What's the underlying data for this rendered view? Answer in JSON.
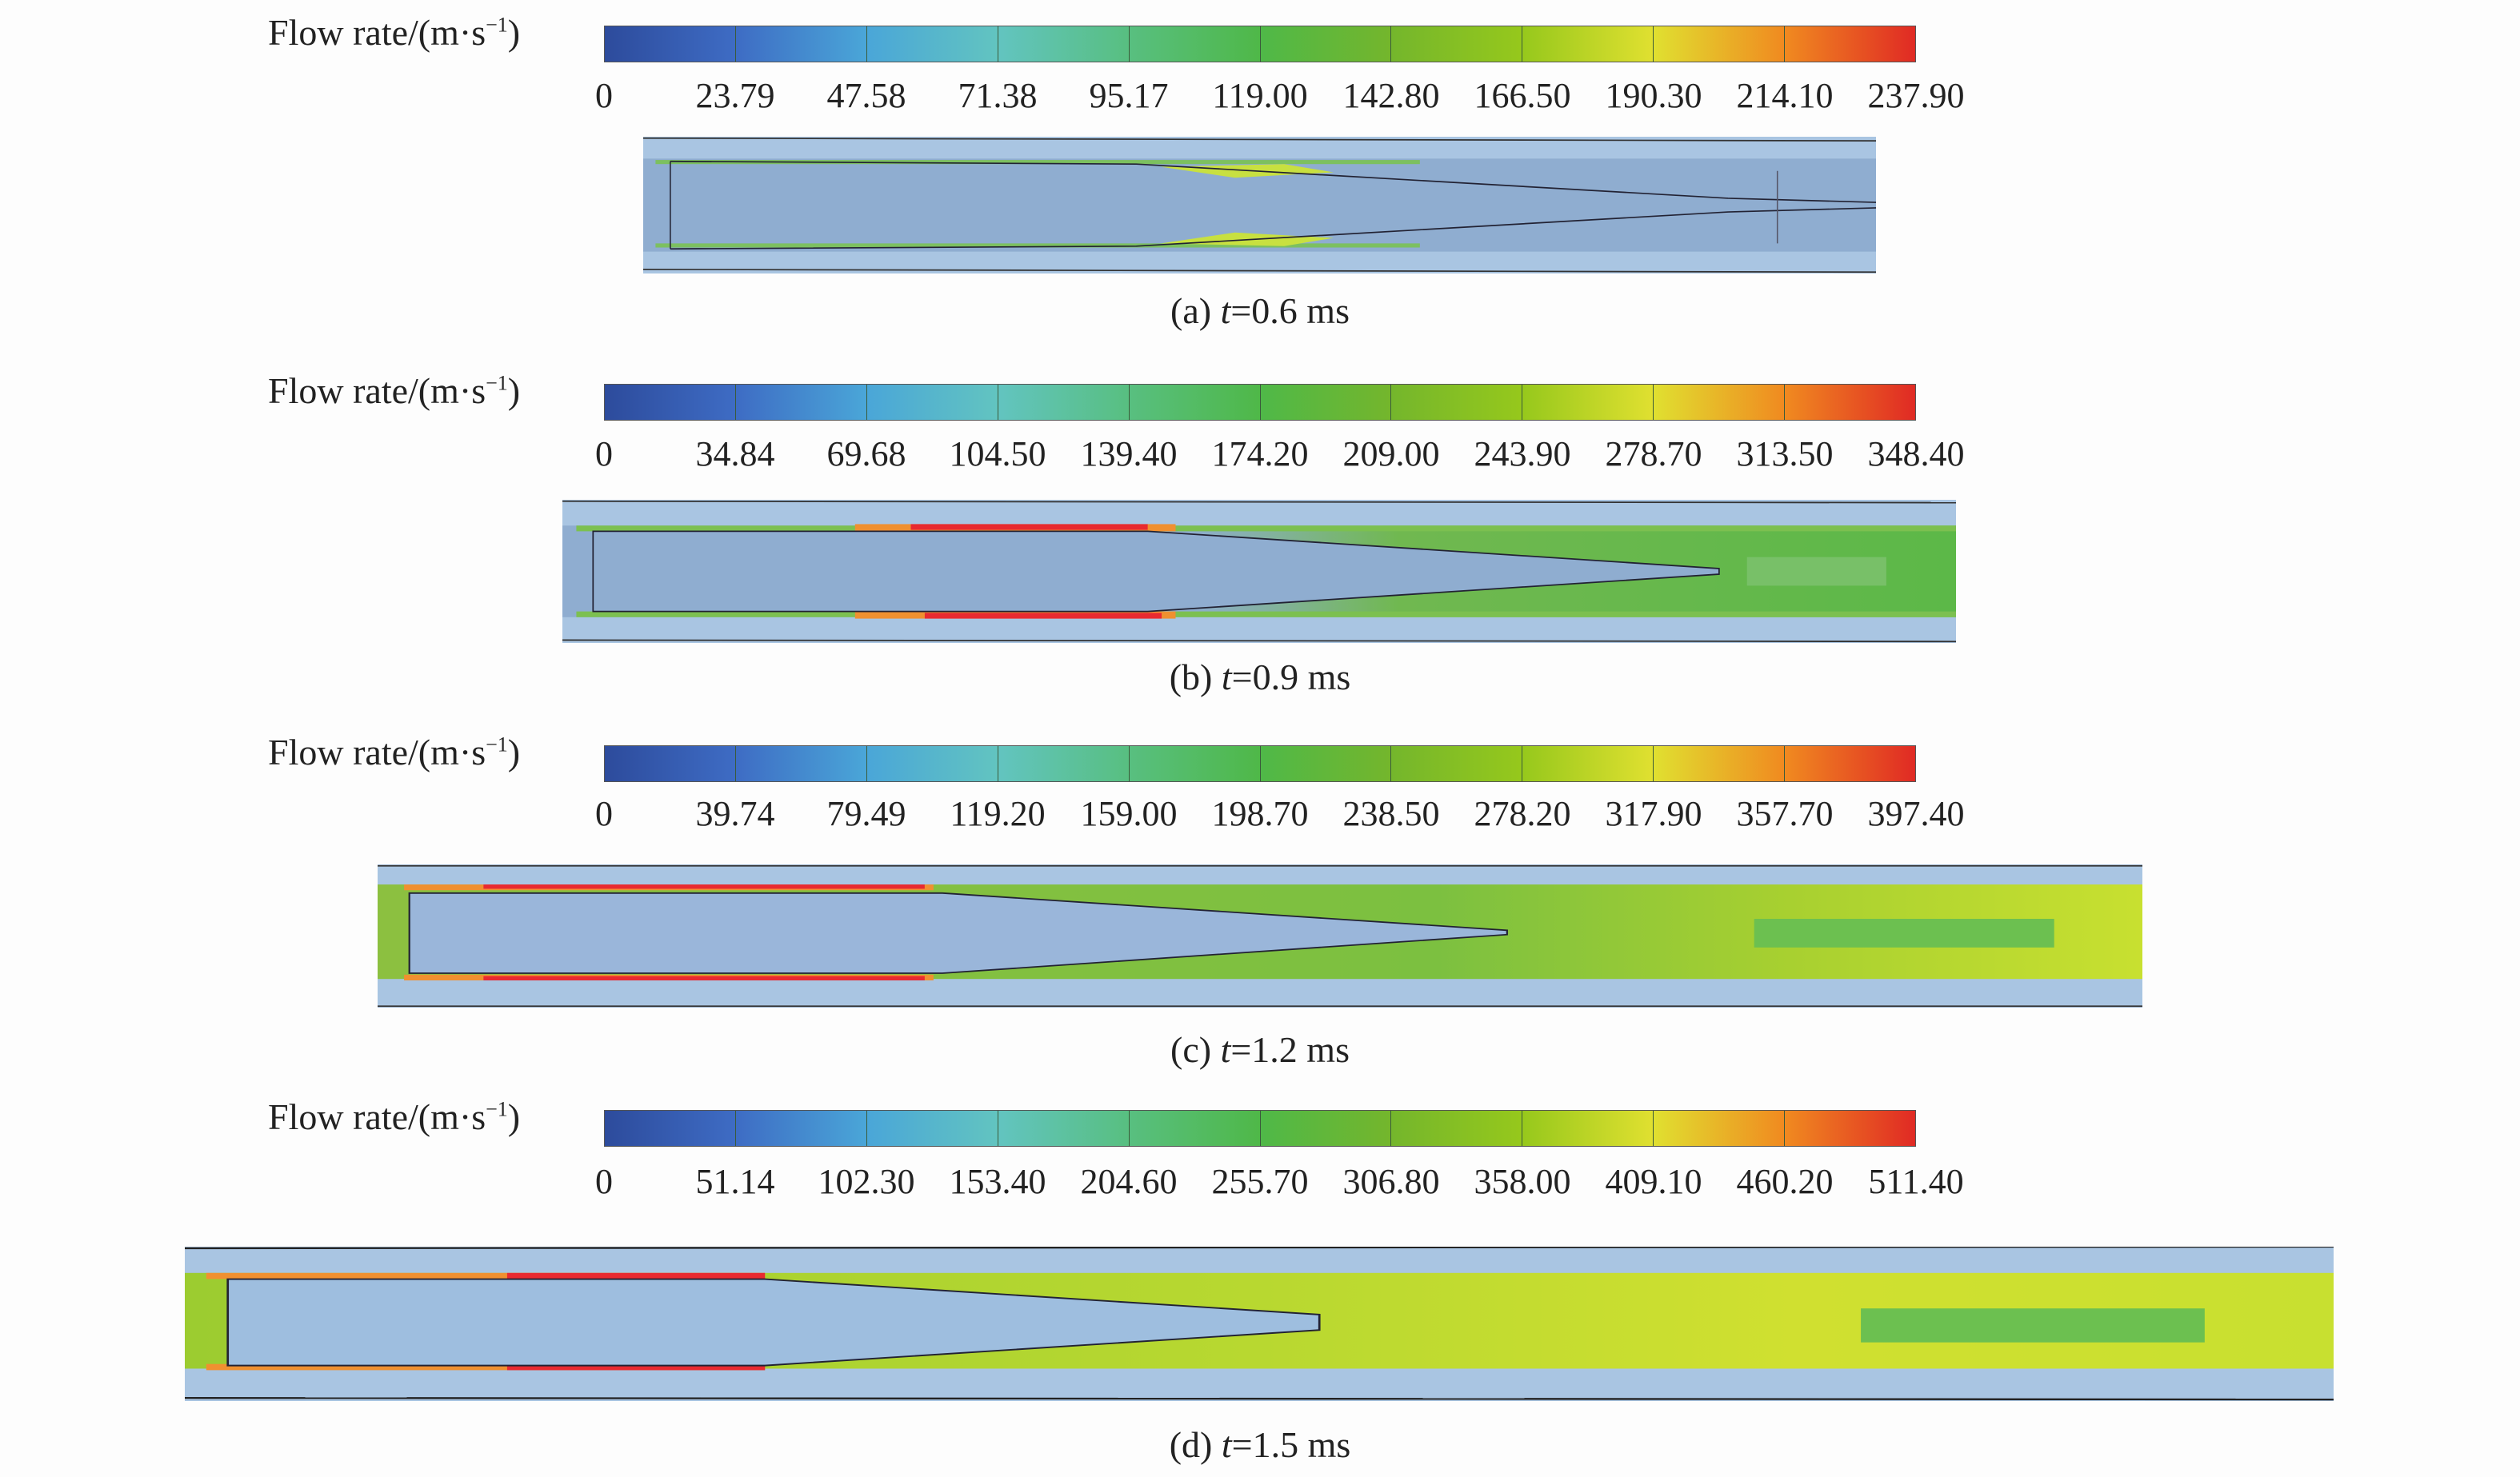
{
  "legend_title": {
    "main": "Flow rate/(m·s",
    "exp": "−1",
    "close": ")"
  },
  "colormap": [
    "#2d4b9c",
    "#3e6cc4",
    "#4aa6d8",
    "#62c4c0",
    "#58bf80",
    "#4fb848",
    "#74b62c",
    "#96c81c",
    "#e0e030",
    "#f08a20",
    "#e02a24"
  ],
  "panels": [
    {
      "id": "a",
      "caption": {
        "prefix": "(a) ",
        "var": "t",
        "rest": "=0.6 ms"
      },
      "ticks": [
        "0",
        "23.79",
        "47.58",
        "71.38",
        "95.17",
        "119.00",
        "142.80",
        "166.50",
        "190.30",
        "214.10",
        "237.90"
      ]
    },
    {
      "id": "b",
      "caption": {
        "prefix": "(b) ",
        "var": "t",
        "rest": "=0.9 ms"
      },
      "ticks": [
        "0",
        "34.84",
        "69.68",
        "104.50",
        "139.40",
        "174.20",
        "209.00",
        "243.90",
        "278.70",
        "313.50",
        "348.40"
      ]
    },
    {
      "id": "c",
      "caption": {
        "prefix": "(c) ",
        "var": "t",
        "rest": "=1.2 ms"
      },
      "ticks": [
        "0",
        "39.74",
        "79.49",
        "119.20",
        "159.00",
        "198.70",
        "238.50",
        "278.20",
        "317.90",
        "357.70",
        "397.40"
      ]
    },
    {
      "id": "d",
      "caption": {
        "prefix": "(d) ",
        "var": "t",
        "rest": "=1.5 ms"
      },
      "ticks": [
        "0",
        "51.14",
        "102.30",
        "153.40",
        "204.60",
        "255.70",
        "306.80",
        "358.00",
        "409.10",
        "460.20",
        "511.40"
      ]
    }
  ]
}
